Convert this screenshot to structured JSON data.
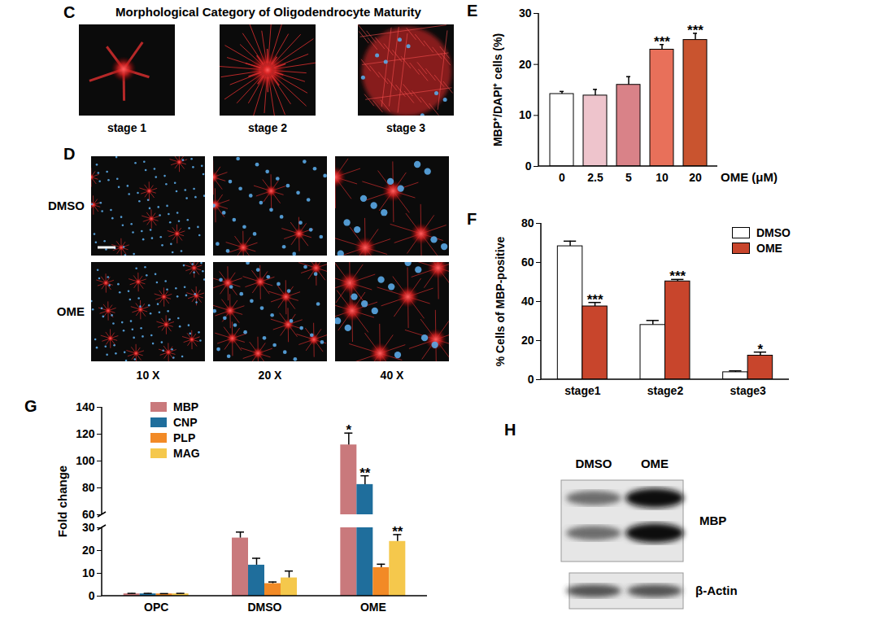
{
  "images": [
    {
      "panel": "C",
      "title": "Morphological Category of Oligodendrocyte Maturity",
      "labels": [
        "stage 1",
        "stage 2",
        "stage 3"
      ]
    },
    {
      "panel": "D",
      "rows": [
        "DMSO",
        "OME"
      ],
      "columns": [
        "10 X",
        "20 X",
        "40 X"
      ]
    },
    {
      "panel": "H",
      "lanes": [
        "DMSO",
        "OME"
      ],
      "bands": [
        "MBP",
        "β-Actin"
      ]
    }
  ],
  "chart_data": [
    {
      "panel": "E",
      "type": "bar",
      "categories": [
        "0",
        "2.5",
        "5",
        "10",
        "20"
      ],
      "values": [
        14.2,
        13.9,
        16.0,
        22.9,
        24.8
      ],
      "errors": [
        0.5,
        1.2,
        1.6,
        1.0,
        1.3
      ],
      "significance": [
        null,
        null,
        null,
        "***",
        "***"
      ],
      "colors": [
        "#ffffff",
        "#eec4cc",
        "#d98288",
        "#e8705a",
        "#c9542f"
      ],
      "xlabel": "OME (μM)",
      "ylabel": "MBP⁺/DAPI⁺ cells (%)",
      "ylim": [
        0,
        30
      ],
      "yticks": [
        0,
        10,
        20,
        30
      ]
    },
    {
      "panel": "F",
      "type": "bar",
      "categories": [
        "stage1",
        "stage2",
        "stage3"
      ],
      "series": [
        {
          "name": "DMSO",
          "color": "#ffffff",
          "values": [
            68.3,
            28.0,
            3.8
          ],
          "errors": [
            2.6,
            2.3,
            0.7
          ]
        },
        {
          "name": "OME",
          "color": "#c8452c",
          "values": [
            37.5,
            50.3,
            12.3
          ],
          "errors": [
            2.0,
            1.0,
            1.8
          ],
          "significance": [
            "***",
            "***",
            "*"
          ]
        }
      ],
      "ylabel": "% Cells of MBP-positive",
      "ylim": [
        0,
        80
      ],
      "yticks": [
        0,
        20,
        40,
        60,
        80
      ],
      "legend": "top-right"
    },
    {
      "panel": "G",
      "type": "bar",
      "categories": [
        "OPC",
        "DMSO",
        "OME"
      ],
      "series": [
        {
          "name": "MBP",
          "color": "#c9797c",
          "values": [
            1,
            25.5,
            112
          ],
          "errors": [
            0.2,
            2.6,
            8.8
          ],
          "significance": [
            null,
            null,
            "*"
          ]
        },
        {
          "name": "CNP",
          "color": "#1f6e9c",
          "values": [
            1,
            13.6,
            82.5
          ],
          "errors": [
            0.2,
            3.0,
            6.5
          ],
          "significance": [
            null,
            null,
            "**"
          ]
        },
        {
          "name": "PLP",
          "color": "#f28a26",
          "values": [
            1,
            5.5,
            12.5
          ],
          "errors": [
            0.1,
            0.7,
            1.5
          ]
        },
        {
          "name": "MAG",
          "color": "#f5c84c",
          "values": [
            1,
            8.0,
            24.0
          ],
          "errors": [
            0.2,
            3.0,
            3.0
          ],
          "significance": [
            null,
            null,
            "**"
          ]
        }
      ],
      "ylabel": "Fold change",
      "ylim": [
        0,
        140
      ],
      "yticks": [
        0,
        10,
        20,
        30,
        60,
        80,
        100,
        120,
        140
      ],
      "axis_break": [
        30,
        60
      ],
      "legend": "top-left"
    }
  ]
}
